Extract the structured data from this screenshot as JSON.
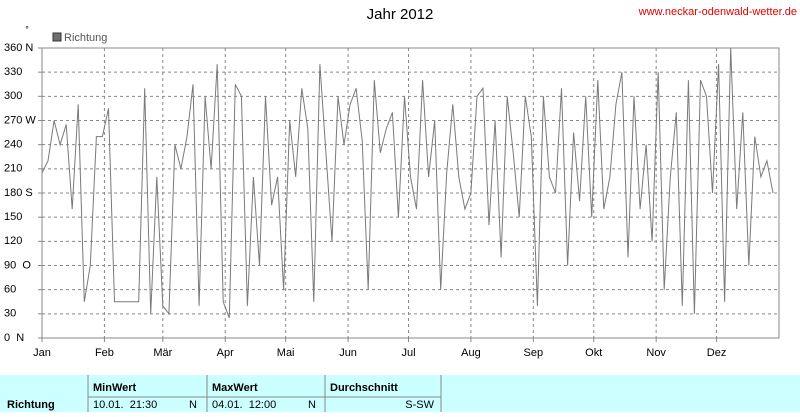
{
  "chart_data": {
    "type": "line",
    "title": "Jahr 2012",
    "source": "www.neckar-odenwald-wetter.de",
    "unit_symbol": "°",
    "grid": true,
    "x": [
      0,
      3,
      6,
      9,
      12,
      15,
      18,
      21,
      24,
      27,
      30,
      33,
      36,
      39,
      42,
      45,
      48,
      51,
      54,
      57,
      60,
      63,
      66,
      69,
      72,
      75,
      78,
      81,
      84,
      87,
      90,
      93,
      96,
      99,
      102,
      105,
      108,
      111,
      114,
      117,
      120,
      123,
      126,
      129,
      132,
      135,
      138,
      141,
      144,
      147,
      150,
      153,
      156,
      159,
      162,
      165,
      168,
      171,
      174,
      177,
      180,
      183,
      186,
      189,
      192,
      195,
      198,
      201,
      204,
      207,
      210,
      213,
      216,
      219,
      222,
      225,
      228,
      231,
      234,
      237,
      240,
      243,
      246,
      249,
      252,
      255,
      258,
      261,
      264,
      267,
      270,
      273,
      276,
      279,
      282,
      285,
      288,
      291,
      294,
      297,
      300,
      303,
      306,
      309,
      312,
      315,
      318,
      321,
      324,
      327,
      330,
      333,
      336,
      339,
      342,
      345,
      348,
      351,
      354,
      357,
      360,
      363
    ],
    "series": [
      {
        "name": "Richtung",
        "color": "#7a7a7a",
        "values": [
          205,
          220,
          270,
          240,
          265,
          160,
          290,
          45,
          90,
          250,
          250,
          285,
          45,
          45,
          45,
          45,
          45,
          310,
          30,
          200,
          40,
          30,
          240,
          210,
          250,
          315,
          40,
          300,
          210,
          340,
          45,
          25,
          315,
          300,
          40,
          200,
          90,
          300,
          165,
          200,
          60,
          270,
          200,
          310,
          260,
          45,
          340,
          230,
          120,
          300,
          240,
          290,
          310,
          245,
          60,
          320,
          230,
          260,
          280,
          150,
          300,
          200,
          160,
          320,
          200,
          270,
          60,
          205,
          290,
          200,
          160,
          180,
          300,
          310,
          140,
          270,
          100,
          300,
          230,
          150,
          300,
          250,
          40,
          300,
          200,
          180,
          310,
          90,
          255,
          170,
          300,
          150,
          320,
          160,
          200,
          290,
          330,
          100,
          300,
          160,
          240,
          120,
          330,
          60,
          200,
          280,
          40,
          320,
          30,
          320,
          300,
          180,
          340,
          45,
          360,
          160,
          280,
          90,
          250,
          200,
          220,
          180
        ]
      }
    ],
    "xlim": [
      0,
      366
    ],
    "xticks": [
      {
        "value": 0,
        "label": "Jan"
      },
      {
        "value": 31,
        "label": "Feb"
      },
      {
        "value": 60,
        "label": "Mär"
      },
      {
        "value": 91,
        "label": "Apr"
      },
      {
        "value": 121,
        "label": "Mai"
      },
      {
        "value": 152,
        "label": "Jun"
      },
      {
        "value": 182,
        "label": "Jul"
      },
      {
        "value": 213,
        "label": "Aug"
      },
      {
        "value": 244,
        "label": "Sep"
      },
      {
        "value": 274,
        "label": "Okt"
      },
      {
        "value": 305,
        "label": "Nov"
      },
      {
        "value": 335,
        "label": "Dez"
      }
    ],
    "ylim": [
      0,
      360
    ],
    "yticks": [
      {
        "value": 360,
        "label": "360 N"
      },
      330,
      300,
      {
        "value": 270,
        "label": "270 W"
      },
      240,
      210,
      {
        "value": 180,
        "label": "180 S"
      },
      150,
      120,
      {
        "value": 90,
        "label": "90  O"
      },
      60,
      30,
      {
        "value": 0,
        "label": "0  N"
      }
    ]
  },
  "table": {
    "row_label": "Richtung",
    "min": {
      "header": "MinWert",
      "time": "10.01.  21:30",
      "dir": "N"
    },
    "max": {
      "header": "MaxWert",
      "time": "04.01.  12:00",
      "dir": "N"
    },
    "avg": {
      "header": "Durchschnitt",
      "dir": "S-SW"
    }
  }
}
